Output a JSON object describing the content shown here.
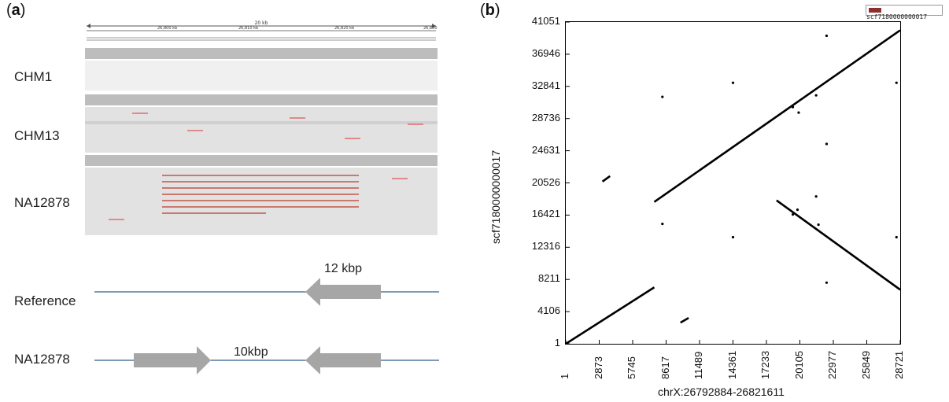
{
  "panel_a": {
    "label_open": "(",
    "label_letter": "a",
    "label_close": ")",
    "ruler_span": "20 kb",
    "ruler_ticks": [
      "26,800 kb",
      "26,810 kb",
      "26,820 kb",
      "26,830"
    ],
    "samples": [
      "CHM1",
      "CHM13",
      "NA12878"
    ],
    "diagram": {
      "reference_label": "Reference",
      "na12878_label": "NA12878",
      "inversion_size_reference": "12 kbp",
      "inversion_size_na12878": "10kbp"
    }
  },
  "panel_b": {
    "label_open": "(",
    "label_letter": "b",
    "label_close": ")",
    "legend_label": "scf7180000000017",
    "legend_color": "#8b2f2f"
  },
  "chart_data": {
    "type": "scatter",
    "title": "",
    "xlabel": "chrX:26792884-26821611",
    "ylabel": "scf7180000000017",
    "xlim": [
      1,
      28721
    ],
    "ylim": [
      1,
      41051
    ],
    "x_ticks": [
      "1",
      "2873",
      "5745",
      "8617",
      "11489",
      "14361",
      "17233",
      "20105",
      "22977",
      "25849",
      "28721"
    ],
    "y_ticks": [
      "1",
      "4106",
      "8211",
      "12316",
      "16421",
      "20526",
      "24631",
      "28736",
      "32841",
      "36946",
      "41051"
    ],
    "segments": [
      {
        "x": [
          1,
          7600
        ],
        "y": [
          1,
          7200
        ]
      },
      {
        "x": [
          3150,
          3800
        ],
        "y": [
          20700,
          21400
        ]
      },
      {
        "x": [
          7600,
          28721
        ],
        "y": [
          18100,
          40000
        ]
      },
      {
        "x": [
          18100,
          28721
        ],
        "y": [
          18300,
          6900
        ]
      },
      {
        "x": [
          9850,
          10550
        ],
        "y": [
          2700,
          3300
        ]
      }
    ],
    "dots": [
      {
        "x": 8300,
        "y": 31500
      },
      {
        "x": 8300,
        "y": 15300
      },
      {
        "x": 14361,
        "y": 33300
      },
      {
        "x": 14361,
        "y": 13600
      },
      {
        "x": 19500,
        "y": 30200
      },
      {
        "x": 20000,
        "y": 29500
      },
      {
        "x": 21500,
        "y": 31700
      },
      {
        "x": 21500,
        "y": 18800
      },
      {
        "x": 21700,
        "y": 15200
      },
      {
        "x": 19500,
        "y": 16500
      },
      {
        "x": 19900,
        "y": 17100
      },
      {
        "x": 22400,
        "y": 39300
      },
      {
        "x": 22400,
        "y": 25500
      },
      {
        "x": 22400,
        "y": 7800
      },
      {
        "x": 28400,
        "y": 33300
      },
      {
        "x": 28400,
        "y": 13600
      }
    ],
    "grid": false,
    "legend_position": "top-right",
    "series": [
      {
        "name": "scf7180000000017"
      }
    ]
  }
}
